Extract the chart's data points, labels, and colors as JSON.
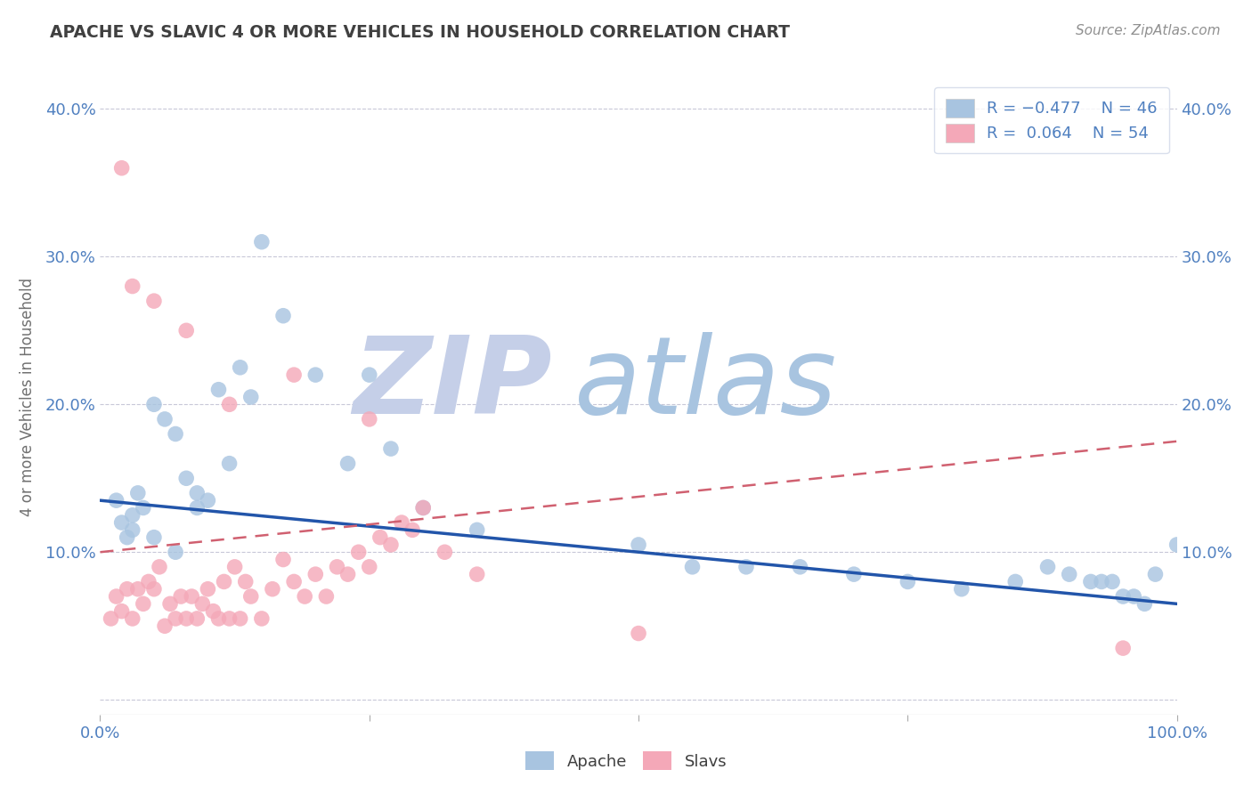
{
  "title": "APACHE VS SLAVIC 4 OR MORE VEHICLES IN HOUSEHOLD CORRELATION CHART",
  "source_text": "Source: ZipAtlas.com",
  "ylabel": "4 or more Vehicles in Household",
  "xlim": [
    0.0,
    100.0
  ],
  "ylim": [
    -1.0,
    42.0
  ],
  "apache_color": "#a8c4e0",
  "slavic_color": "#f4a8b8",
  "apache_line_color": "#2255aa",
  "slavic_line_color": "#d06070",
  "watermark_zip": "ZIP",
  "watermark_atlas": "atlas",
  "watermark_color_zip": "#c5cfe8",
  "watermark_color_atlas": "#a8c4e0",
  "background_color": "#ffffff",
  "grid_color": "#c8c8d8",
  "title_color": "#404040",
  "axis_label_color": "#707070",
  "tick_color": "#5080c0",
  "apache_scatter_x": [
    1.5,
    2.0,
    2.5,
    3.0,
    3.5,
    4.0,
    5.0,
    6.0,
    7.0,
    8.0,
    9.0,
    10.0,
    11.0,
    12.0,
    13.0,
    14.0,
    15.0,
    17.0,
    20.0,
    23.0,
    25.0,
    27.0,
    30.0,
    35.0,
    50.0,
    55.0,
    60.0,
    65.0,
    70.0,
    75.0,
    80.0,
    85.0,
    88.0,
    90.0,
    92.0,
    93.0,
    94.0,
    95.0,
    96.0,
    97.0,
    98.0,
    100.0,
    3.0,
    5.0,
    7.0,
    9.0
  ],
  "apache_scatter_y": [
    13.5,
    12.0,
    11.0,
    12.5,
    14.0,
    13.0,
    20.0,
    19.0,
    18.0,
    15.0,
    14.0,
    13.5,
    21.0,
    16.0,
    22.5,
    20.5,
    31.0,
    26.0,
    22.0,
    16.0,
    22.0,
    17.0,
    13.0,
    11.5,
    10.5,
    9.0,
    9.0,
    9.0,
    8.5,
    8.0,
    7.5,
    8.0,
    9.0,
    8.5,
    8.0,
    8.0,
    8.0,
    7.0,
    7.0,
    6.5,
    8.5,
    10.5,
    11.5,
    11.0,
    10.0,
    13.0
  ],
  "slavic_scatter_x": [
    1.0,
    1.5,
    2.0,
    2.5,
    3.0,
    3.5,
    4.0,
    4.5,
    5.0,
    5.5,
    6.0,
    6.5,
    7.0,
    7.5,
    8.0,
    8.5,
    9.0,
    9.5,
    10.0,
    10.5,
    11.0,
    11.5,
    12.0,
    12.5,
    13.0,
    13.5,
    14.0,
    15.0,
    16.0,
    17.0,
    18.0,
    19.0,
    20.0,
    21.0,
    22.0,
    23.0,
    24.0,
    25.0,
    26.0,
    27.0,
    28.0,
    29.0,
    30.0,
    32.0,
    35.0,
    2.0,
    3.0,
    5.0,
    8.0,
    12.0,
    18.0,
    25.0,
    50.0,
    95.0
  ],
  "slavic_scatter_y": [
    5.5,
    7.0,
    6.0,
    7.5,
    5.5,
    7.5,
    6.5,
    8.0,
    7.5,
    9.0,
    5.0,
    6.5,
    5.5,
    7.0,
    5.5,
    7.0,
    5.5,
    6.5,
    7.5,
    6.0,
    5.5,
    8.0,
    5.5,
    9.0,
    5.5,
    8.0,
    7.0,
    5.5,
    7.5,
    9.5,
    8.0,
    7.0,
    8.5,
    7.0,
    9.0,
    8.5,
    10.0,
    9.0,
    11.0,
    10.5,
    12.0,
    11.5,
    13.0,
    10.0,
    8.5,
    36.0,
    28.0,
    27.0,
    25.0,
    20.0,
    22.0,
    19.0,
    4.5,
    3.5
  ],
  "apache_trend_x": [
    0,
    100
  ],
  "apache_trend_y": [
    13.5,
    6.5
  ],
  "slavic_trend_x": [
    0,
    100
  ],
  "slavic_trend_y": [
    10.0,
    17.5
  ],
  "legend_entries": [
    {
      "label": "R = -0.477    N = 46",
      "color": "#a8c4e0"
    },
    {
      "label": "R =  0.064    N = 54",
      "color": "#f4a8b8"
    }
  ],
  "bottom_labels": [
    "Apache",
    "Slavs"
  ],
  "bottom_label_colors": [
    "#a8c4e0",
    "#f4a8b8"
  ],
  "x_ticks": [
    0,
    25,
    50,
    75,
    100
  ],
  "x_tick_labels": [
    "0.0%",
    "",
    "",
    "",
    "100.0%"
  ],
  "y_ticks": [
    0,
    10,
    20,
    30,
    40
  ],
  "y_tick_labels": [
    "",
    "10.0%",
    "20.0%",
    "30.0%",
    "40.0%"
  ]
}
